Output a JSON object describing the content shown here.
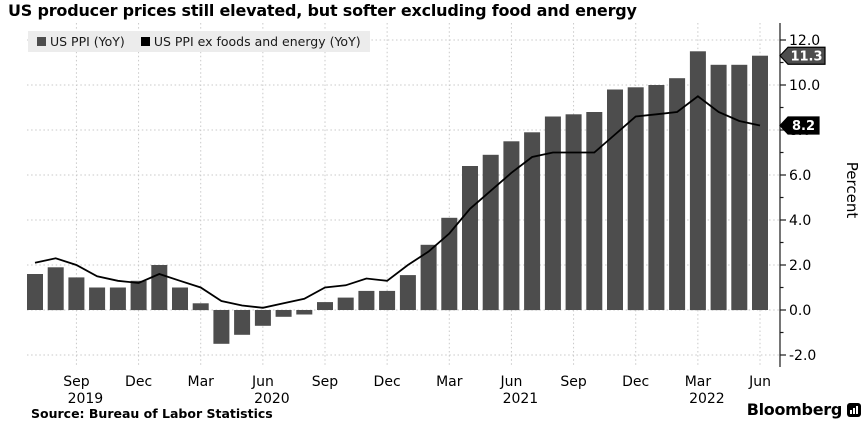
{
  "header": {
    "title": "US producer prices still elevated, but softer excluding food and energy"
  },
  "chart_data": {
    "type": "bar",
    "title": "US producer prices still elevated, but softer excluding food and energy",
    "xlabel": "",
    "ylabel": "Percent",
    "ylim": [
      -2.6,
      12.7
    ],
    "grid": true,
    "legend_position": "top-left",
    "x": [
      "Jul 2019",
      "Aug 2019",
      "Sep 2019",
      "Oct 2019",
      "Nov 2019",
      "Dec 2019",
      "Jan 2020",
      "Feb 2020",
      "Mar 2020",
      "Apr 2020",
      "May 2020",
      "Jun 2020",
      "Jul 2020",
      "Aug 2020",
      "Sep 2020",
      "Oct 2020",
      "Nov 2020",
      "Dec 2020",
      "Jan 2021",
      "Feb 2021",
      "Mar 2021",
      "Apr 2021",
      "May 2021",
      "Jun 2021",
      "Jul 2021",
      "Aug 2021",
      "Sep 2021",
      "Oct 2021",
      "Nov 2021",
      "Dec 2021",
      "Jan 2022",
      "Feb 2022",
      "Mar 2022",
      "Apr 2022",
      "May 2022",
      "Jun 2022"
    ],
    "series": [
      {
        "name": "US PPI (YoY)",
        "type": "bar",
        "color": "#4d4d4d",
        "values": [
          1.6,
          1.9,
          1.45,
          1.0,
          1.0,
          1.3,
          2.0,
          1.0,
          0.3,
          -1.5,
          -1.1,
          -0.7,
          -0.3,
          -0.2,
          0.35,
          0.55,
          0.85,
          0.85,
          1.55,
          2.9,
          4.1,
          6.4,
          6.9,
          7.5,
          7.9,
          8.6,
          8.7,
          8.8,
          9.8,
          9.9,
          10.0,
          10.3,
          11.5,
          10.9,
          10.9,
          11.3
        ]
      },
      {
        "name": "US PPI ex foods and energy (YoY)",
        "type": "line",
        "color": "#000000",
        "values": [
          2.1,
          2.3,
          2.0,
          1.5,
          1.3,
          1.2,
          1.6,
          1.3,
          1.0,
          0.4,
          0.2,
          0.1,
          0.3,
          0.5,
          1.0,
          1.1,
          1.4,
          1.3,
          2.0,
          2.6,
          3.4,
          4.5,
          5.3,
          6.1,
          6.8,
          7.0,
          7.0,
          7.0,
          7.8,
          8.6,
          8.7,
          8.8,
          9.5,
          8.8,
          8.4,
          8.2
        ]
      }
    ],
    "x_ticks": [
      {
        "index": 2,
        "label": "Sep",
        "year": "2019"
      },
      {
        "index": 5,
        "label": "Dec",
        "year": ""
      },
      {
        "index": 8,
        "label": "Mar",
        "year": ""
      },
      {
        "index": 11,
        "label": "Jun",
        "year": "2020"
      },
      {
        "index": 14,
        "label": "Sep",
        "year": ""
      },
      {
        "index": 17,
        "label": "Dec",
        "year": ""
      },
      {
        "index": 20,
        "label": "Mar",
        "year": ""
      },
      {
        "index": 23,
        "label": "Jun",
        "year": "2021"
      },
      {
        "index": 26,
        "label": "Sep",
        "year": ""
      },
      {
        "index": 29,
        "label": "Dec",
        "year": ""
      },
      {
        "index": 32,
        "label": "Mar",
        "year": "2022"
      },
      {
        "index": 35,
        "label": "Jun",
        "year": ""
      }
    ],
    "y_major_ticks": [
      -2.0,
      0.0,
      2.0,
      4.0,
      6.0,
      8.0,
      10.0,
      12.0
    ],
    "y_minor_ticks": [
      -1.0,
      1.0,
      3.0,
      5.0,
      7.0,
      9.0,
      11.0
    ],
    "end_labels": [
      {
        "text": "11.3",
        "value": 11.3,
        "bg": "#4d4d4d",
        "fg": "#ffffff",
        "border": "#000000"
      },
      {
        "text": "8.2",
        "value": 8.2,
        "bg": "#000000",
        "fg": "#ffffff",
        "border": "#000000"
      }
    ]
  },
  "footer": {
    "source": "Source: Bureau of Labor Statistics",
    "brand": "Bloomberg"
  },
  "colors": {
    "grid": "#c9c9c9",
    "axis": "#1a1a1a",
    "tick_text": "#000000",
    "legend_bg": "#ececec",
    "bar": "#4d4d4d",
    "line": "#000000"
  }
}
